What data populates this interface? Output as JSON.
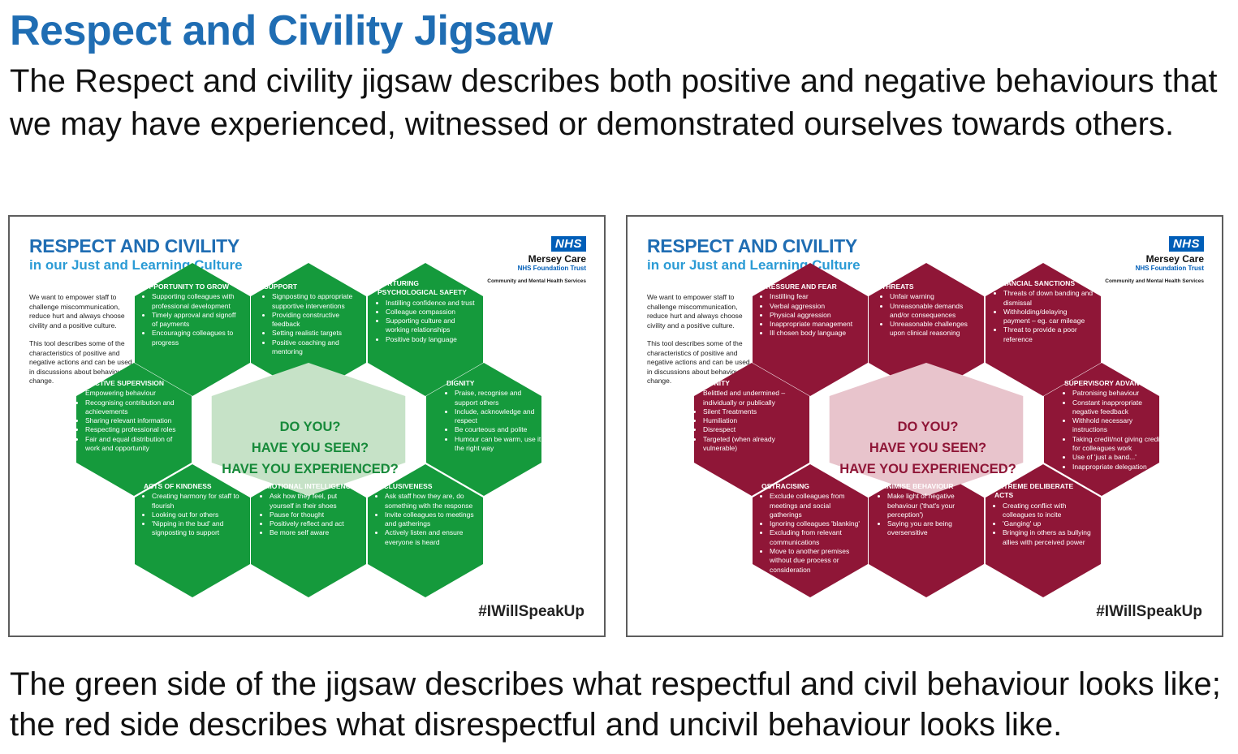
{
  "title": "Respect and Civility Jigsaw",
  "intro": "The Respect and civility jigsaw describes both positive and negative behaviours that we may have experienced, witnessed or demonstrated ourselves towards others.",
  "outro": "The green side of the jigsaw describes what respectful and civil behaviour looks like; the red side describes what disrespectful and uncivil behaviour looks like.",
  "colors": {
    "title_blue": "#1f6db3",
    "green": "#159a3c",
    "green_center": "#c6e2c7",
    "green_center_text": "#178a3a",
    "red": "#8f1637",
    "red_center": "#e8c4cc",
    "red_center_text": "#8f1637",
    "nhs_blue": "#005eb8"
  },
  "cards": [
    {
      "title": "RESPECT AND CIVILITY",
      "subtitle": "in our Just and Learning Culture",
      "logo": {
        "badge": "NHS",
        "org": "Mersey Care",
        "trust": "NHS Foundation Trust"
      },
      "service": "Community and Mental Health Services",
      "side_text": [
        "We want to empower staff to challenge miscommunication, reduce hurt and always choose civility and a positive culture.",
        "This tool describes some of the characteristics of positive and negative actions and can be used in discussions about behavioural change."
      ],
      "center": [
        "DO YOU?",
        "HAVE YOU SEEN?",
        "HAVE YOU EXPERIENCED?"
      ],
      "hashtag": "#IWillSpeakUp",
      "hexes": [
        {
          "title": "OPPORTUNITY TO GROW",
          "items": [
            "Supporting colleagues with professional development",
            "Timely approval and signoff of payments",
            "Encouraging colleagues to progress"
          ]
        },
        {
          "title": "SUPPORT",
          "items": [
            "Signposting to appropriate supportive interventions",
            "Providing constructive feedback",
            "Setting realistic targets",
            "Positive coaching and mentoring"
          ]
        },
        {
          "title": "NURTURING PSYCHOLOGICAL SAFETY",
          "items": [
            "Instilling confidence and trust",
            "Colleague compassion",
            "Supporting culture and working relationships",
            "Positive body language"
          ]
        },
        {
          "title": "EFFECTIVE SUPERVISION",
          "items": [
            "Empowering behaviour",
            "Recognising contribution and achievements",
            "Sharing relevant information",
            "Respecting professional roles",
            "Fair and equal distribution of work and opportunity"
          ]
        },
        {
          "title": "DIGNITY",
          "items": [
            "Praise, recognise and support others",
            "Include, acknowledge and respect",
            "Be courteous and polite",
            "Humour can be warm, use it the right way"
          ]
        },
        {
          "title": "ACTS OF KINDNESS",
          "items": [
            "Creating harmony for staff to flourish",
            "Looking out for others",
            "'Nipping in the bud' and signposting to support"
          ]
        },
        {
          "title": "EMOTIONAL INTELLIGENCE",
          "items": [
            "Ask how they feel, put yourself in their shoes",
            "Pause for thought",
            "Positively reflect and act",
            "Be more self aware"
          ]
        },
        {
          "title": "INCLUSIVENESS",
          "items": [
            "Ask staff how they are, do something with the response",
            "Invite colleagues to meetings and gatherings",
            "Actively listen and ensure everyone is heard"
          ]
        }
      ]
    },
    {
      "title": "RESPECT AND CIVILITY",
      "subtitle": "in our Just and Learning Culture",
      "logo": {
        "badge": "NHS",
        "org": "Mersey Care",
        "trust": "NHS Foundation Trust"
      },
      "service": "Community and Mental Health Services",
      "side_text": [
        "We want to empower staff to challenge miscommunication, reduce hurt and always choose civility and a positive culture.",
        "This tool describes some of the characteristics of positive and negative actions and can be used in discussions about behavioural change."
      ],
      "center": [
        "DO YOU?",
        "HAVE YOU SEEN?",
        "HAVE YOU EXPERIENCED?"
      ],
      "hashtag": "#IWillSpeakUp",
      "hexes": [
        {
          "title": "PRESSURE AND FEAR",
          "items": [
            "Instilling fear",
            "Verbal aggression",
            "Physical aggression",
            "Inappropriate management",
            "Ill chosen body language"
          ]
        },
        {
          "title": "THREATS",
          "items": [
            "Unfair warning",
            "Unreasonable demands and/or consequences",
            "Unreasonable challenges upon clinical reasoning"
          ]
        },
        {
          "title": "FINANCIAL SANCTIONS",
          "items": [
            "Threats of down banding and dismissal",
            "Withholding/delaying payment – eg. car mileage",
            "Threat to provide a poor reference"
          ]
        },
        {
          "title": "INDIGNITY",
          "items": [
            "Belittled and undermined – individually or publically",
            "Silent Treatments",
            "Humiliation",
            "Disrespect",
            "Targeted (when already vulnerable)"
          ]
        },
        {
          "title": "SUPERVISORY ADVANTAGE",
          "items": [
            "Patronising behaviour",
            "Constant inappropriate negative feedback",
            "Withhold necessary instructions",
            "Taking credit/not giving credit for colleagues work",
            "Use of 'just a band...'",
            "Inappropriate delegation"
          ]
        },
        {
          "title": "OSTRACISING",
          "items": [
            "Exclude colleagues from meetings and social gatherings",
            "Ignoring colleagues 'blanking'",
            "Excluding from relevant communications",
            "Move to another premises without due process or consideration"
          ]
        },
        {
          "title": "MINIMISE BEHAVIOUR",
          "items": [
            "Make light of negative behaviour ('that's your perception')",
            "Saying you are being oversensitive"
          ]
        },
        {
          "title": "EXTREME DELIBERATE ACTS",
          "items": [
            "Creating conflict with colleagues to incite",
            "'Ganging' up",
            "Bringing in others as bullying allies with perceived power"
          ]
        }
      ]
    }
  ]
}
